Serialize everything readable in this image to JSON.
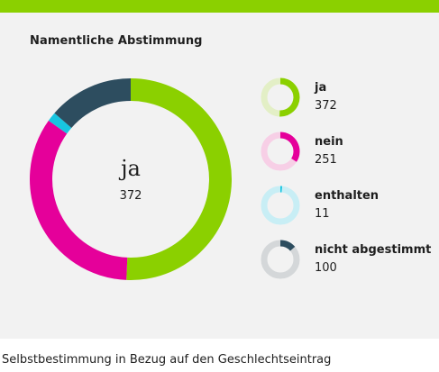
{
  "card": {
    "title": "Namentliche Abstimmung",
    "accent": "#8bd000",
    "background": "#f2f2f2"
  },
  "center": {
    "label": "ja",
    "value": "372"
  },
  "caption": "Selbstbestimmung in Bezug auf den Geschlechtseintrag",
  "chart_data": {
    "type": "pie",
    "title": "Namentliche Abstimmung",
    "categories": [
      "ja",
      "nein",
      "enthalten",
      "nicht abgestimmt"
    ],
    "values": [
      372,
      251,
      11,
      100
    ],
    "colors": [
      "#8bd000",
      "#e5009a",
      "#17c5e0",
      "#2d4d5f"
    ],
    "series": [
      {
        "name": "ja",
        "value": 372,
        "color": "#8bd000",
        "track": "#e3efc6"
      },
      {
        "name": "nein",
        "value": 251,
        "color": "#e5009a",
        "track": "#f7cfe6"
      },
      {
        "name": "enthalten",
        "value": 11,
        "color": "#17c5e0",
        "track": "#c8eef5"
      },
      {
        "name": "nicht abgestimmt",
        "value": 100,
        "color": "#2d4d5f",
        "track": "#d4d7d9"
      }
    ]
  }
}
